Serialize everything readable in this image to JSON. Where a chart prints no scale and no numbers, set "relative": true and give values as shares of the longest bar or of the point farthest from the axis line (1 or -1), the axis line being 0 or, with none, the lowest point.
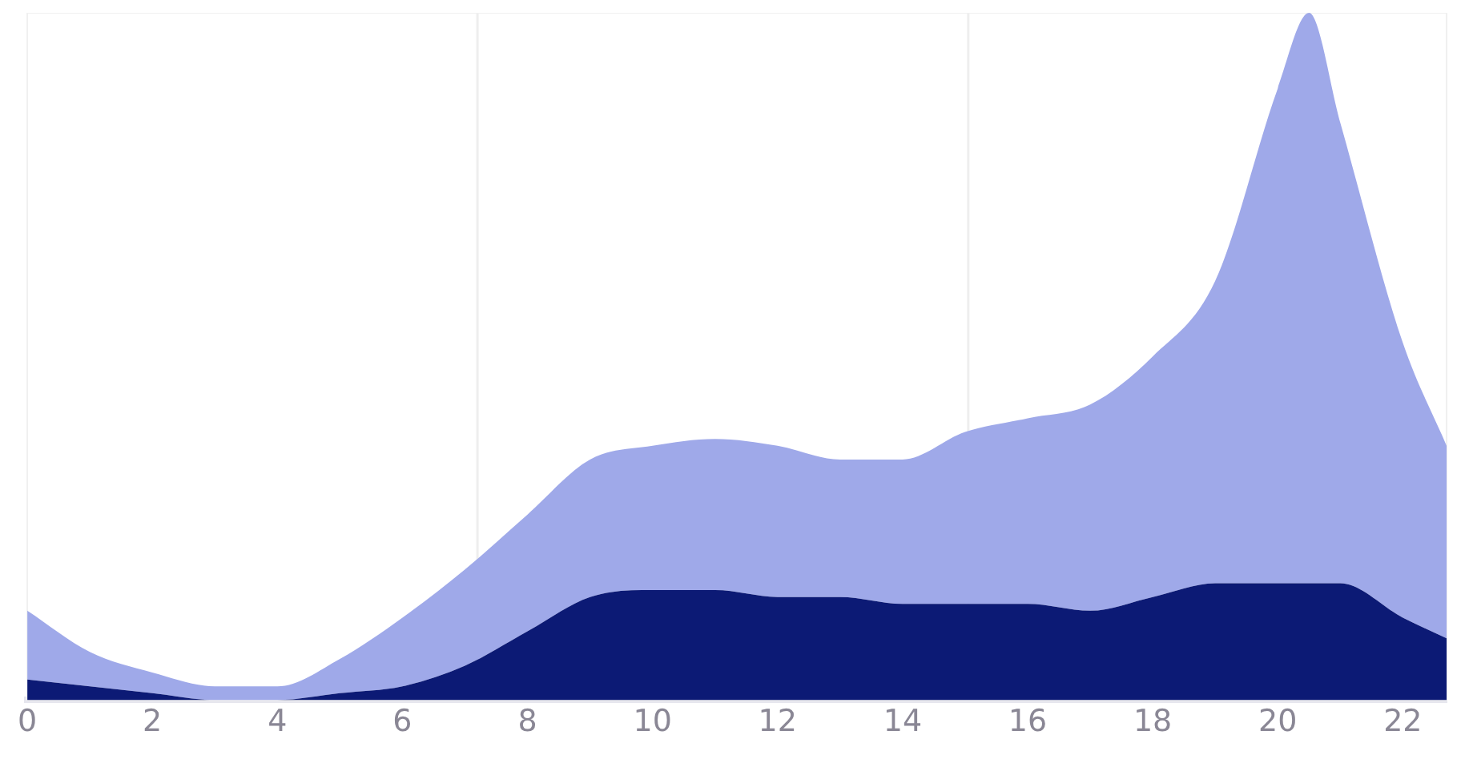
{
  "chart_data": {
    "type": "area",
    "stacked": true,
    "relative": true,
    "x": [
      0,
      1,
      2,
      3,
      4,
      5,
      6,
      7,
      8,
      9,
      10,
      11,
      12,
      13,
      14,
      15,
      16,
      17,
      18,
      19,
      20,
      20.5,
      21,
      22,
      22.7
    ],
    "xlim": [
      0,
      22.7
    ],
    "xticks": [
      0,
      2,
      4,
      6,
      8,
      10,
      12,
      14,
      16,
      18,
      20,
      22
    ],
    "series": [
      {
        "color": "#0c1a75",
        "values": [
          0.03,
          0.02,
          0.01,
          0.0,
          0.0,
          0.01,
          0.02,
          0.05,
          0.1,
          0.15,
          0.16,
          0.16,
          0.15,
          0.15,
          0.14,
          0.14,
          0.14,
          0.13,
          0.15,
          0.17,
          0.17,
          0.17,
          0.17,
          0.12,
          0.09
        ]
      },
      {
        "color": "#9fa9e9",
        "values": [
          0.1,
          0.05,
          0.03,
          0.02,
          0.02,
          0.05,
          0.1,
          0.14,
          0.17,
          0.2,
          0.21,
          0.22,
          0.22,
          0.2,
          0.21,
          0.25,
          0.27,
          0.3,
          0.35,
          0.44,
          0.72,
          0.83,
          0.67,
          0.4,
          0.28
        ]
      }
    ],
    "ref_lines": [
      {
        "axis": "x",
        "value": 7.2,
        "color": "#eeeeee"
      },
      {
        "axis": "x",
        "value": 15.05,
        "color": "#eeeeee"
      }
    ],
    "grid": false,
    "legend": false
  }
}
